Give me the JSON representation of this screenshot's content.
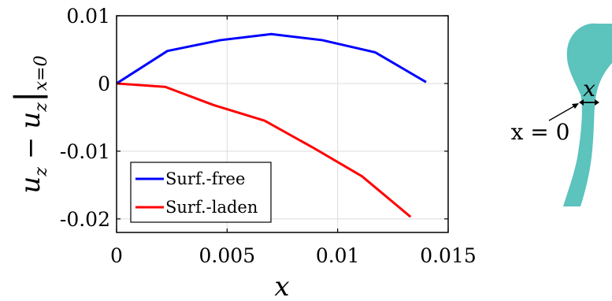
{
  "chart_data": {
    "type": "line",
    "xlabel": "x",
    "ylabel_parts": {
      "main": "u",
      "sub1": "z",
      "minus": "−",
      "main2": "u",
      "sub2": "z",
      "bar": "|",
      "cond": "x=0"
    },
    "xlim": [
      0,
      0.015
    ],
    "ylim": [
      -0.022,
      0.01
    ],
    "x_ticks": [
      0,
      0.005,
      0.01,
      0.015
    ],
    "x_tick_labels": [
      "0",
      "0.005",
      "0.01",
      "0.015"
    ],
    "y_ticks": [
      0.01,
      0,
      -0.01,
      -0.02
    ],
    "y_tick_labels": [
      "0.01",
      "0",
      "-0.01",
      "-0.02"
    ],
    "grid": true,
    "legend_position": "bottom-left",
    "series": [
      {
        "name": "Surf.-free",
        "color": "#0000ff",
        "x": [
          0,
          0.0023,
          0.0047,
          0.007,
          0.0093,
          0.0117,
          0.014
        ],
        "y": [
          0,
          0.0048,
          0.0064,
          0.0073,
          0.0064,
          0.0046,
          0.0002
        ]
      },
      {
        "name": "Surf.-laden",
        "color": "#ff0000",
        "x": [
          0,
          0.0022,
          0.0044,
          0.0067,
          0.0089,
          0.0111,
          0.0133
        ],
        "y": [
          0,
          -0.0005,
          -0.0032,
          -0.0055,
          -0.0095,
          -0.0137,
          -0.0197
        ]
      }
    ]
  },
  "inset": {
    "shape_color": "#5cc3bd",
    "x_label": "x",
    "origin_label": "x = 0"
  }
}
